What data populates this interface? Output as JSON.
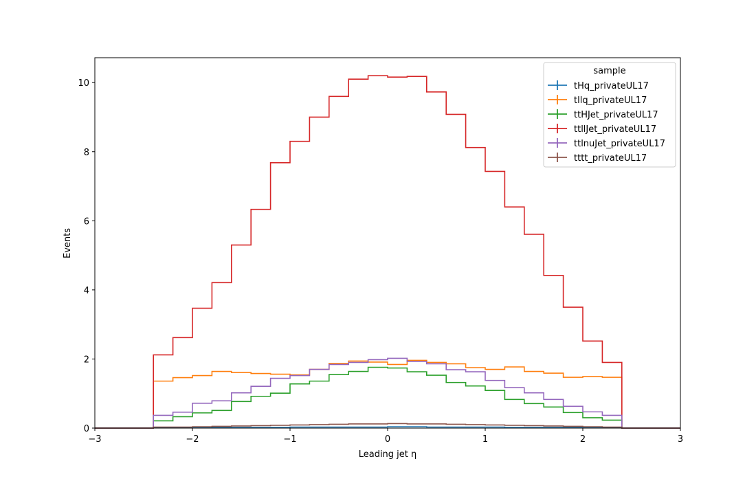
{
  "chart_data": {
    "type": "line",
    "style": "step-histogram",
    "xlabel": "Leading jet  η",
    "ylabel": "Events",
    "xlim": [
      -3,
      3
    ],
    "ylim": [
      0,
      10.72
    ],
    "xticks": [
      -3,
      -2,
      -1,
      0,
      1,
      2,
      3
    ],
    "xtick_labels": [
      "−3",
      "−2",
      "−1",
      "0",
      "1",
      "2",
      "3"
    ],
    "yticks": [
      0,
      2,
      4,
      6,
      8,
      10
    ],
    "ytick_labels": [
      "0",
      "2",
      "4",
      "6",
      "8",
      "10"
    ],
    "bin_edges": [
      -2.4,
      -2.2,
      -2.0,
      -1.8,
      -1.6,
      -1.4,
      -1.2,
      -1.0,
      -0.8,
      -0.6,
      -0.4,
      -0.2,
      0.0,
      0.2,
      0.4,
      0.6,
      0.8,
      1.0,
      1.2,
      1.4,
      1.6,
      1.8,
      2.0,
      2.2,
      2.4
    ],
    "grid": false,
    "legend": {
      "title": "sample",
      "position": "top-right"
    },
    "series": [
      {
        "name": "tHq_privateUL17",
        "color": "#1f77b4",
        "values": [
          0.01,
          0.01,
          0.01,
          0.02,
          0.02,
          0.02,
          0.02,
          0.03,
          0.03,
          0.03,
          0.03,
          0.03,
          0.04,
          0.04,
          0.03,
          0.03,
          0.03,
          0.03,
          0.02,
          0.02,
          0.02,
          0.02,
          0.01,
          0.01
        ]
      },
      {
        "name": "tllq_privateUL17",
        "color": "#ff7f0e",
        "values": [
          1.36,
          1.46,
          1.52,
          1.64,
          1.61,
          1.58,
          1.56,
          1.54,
          1.7,
          1.87,
          1.94,
          1.91,
          1.84,
          1.96,
          1.9,
          1.86,
          1.75,
          1.7,
          1.77,
          1.64,
          1.59,
          1.47,
          1.49,
          1.47
        ]
      },
      {
        "name": "ttHJet_privateUL17",
        "color": "#2ca02c",
        "values": [
          0.21,
          0.33,
          0.44,
          0.51,
          0.77,
          0.92,
          1.01,
          1.28,
          1.36,
          1.55,
          1.64,
          1.76,
          1.74,
          1.63,
          1.53,
          1.32,
          1.22,
          1.09,
          0.83,
          0.71,
          0.61,
          0.45,
          0.3,
          0.23
        ]
      },
      {
        "name": "ttllJet_privateUL17",
        "color": "#d62728",
        "values": [
          2.12,
          2.62,
          3.47,
          4.21,
          5.3,
          6.33,
          7.68,
          8.3,
          9.0,
          9.6,
          10.1,
          10.2,
          10.16,
          10.18,
          9.73,
          9.08,
          8.12,
          7.43,
          6.4,
          5.61,
          4.42,
          3.5,
          2.52,
          1.9
        ]
      },
      {
        "name": "ttlnuJet_privateUL17",
        "color": "#9467bd",
        "values": [
          0.37,
          0.46,
          0.72,
          0.79,
          1.02,
          1.21,
          1.44,
          1.52,
          1.7,
          1.84,
          1.9,
          1.98,
          2.02,
          1.93,
          1.86,
          1.69,
          1.63,
          1.38,
          1.17,
          1.02,
          0.83,
          0.63,
          0.47,
          0.37
        ]
      },
      {
        "name": "tttt_privateUL17",
        "color": "#8c564b",
        "values": [
          0.03,
          0.03,
          0.04,
          0.05,
          0.06,
          0.07,
          0.08,
          0.09,
          0.1,
          0.11,
          0.12,
          0.12,
          0.13,
          0.12,
          0.12,
          0.11,
          0.1,
          0.09,
          0.08,
          0.07,
          0.06,
          0.05,
          0.04,
          0.03
        ]
      }
    ]
  }
}
